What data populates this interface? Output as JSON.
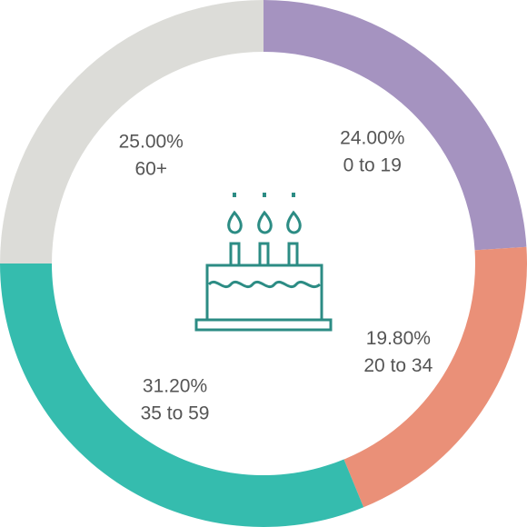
{
  "chart_data": {
    "type": "pie",
    "donut": true,
    "categories": [
      "0 to 19",
      "20 to 34",
      "35 to 59",
      "60+"
    ],
    "values": [
      24.0,
      19.8,
      31.2,
      25.0
    ],
    "value_labels": [
      "24.00%",
      "19.80%",
      "31.20%",
      "25.00%"
    ],
    "colors": [
      "#a593c0",
      "#ea9078",
      "#35bcae",
      "#dcdcd8"
    ],
    "start_angle": "12 o'clock",
    "direction": "clockwise",
    "legend": "none",
    "center_icon": "birthday-cake-icon",
    "icon_color": "#2c8c84"
  }
}
